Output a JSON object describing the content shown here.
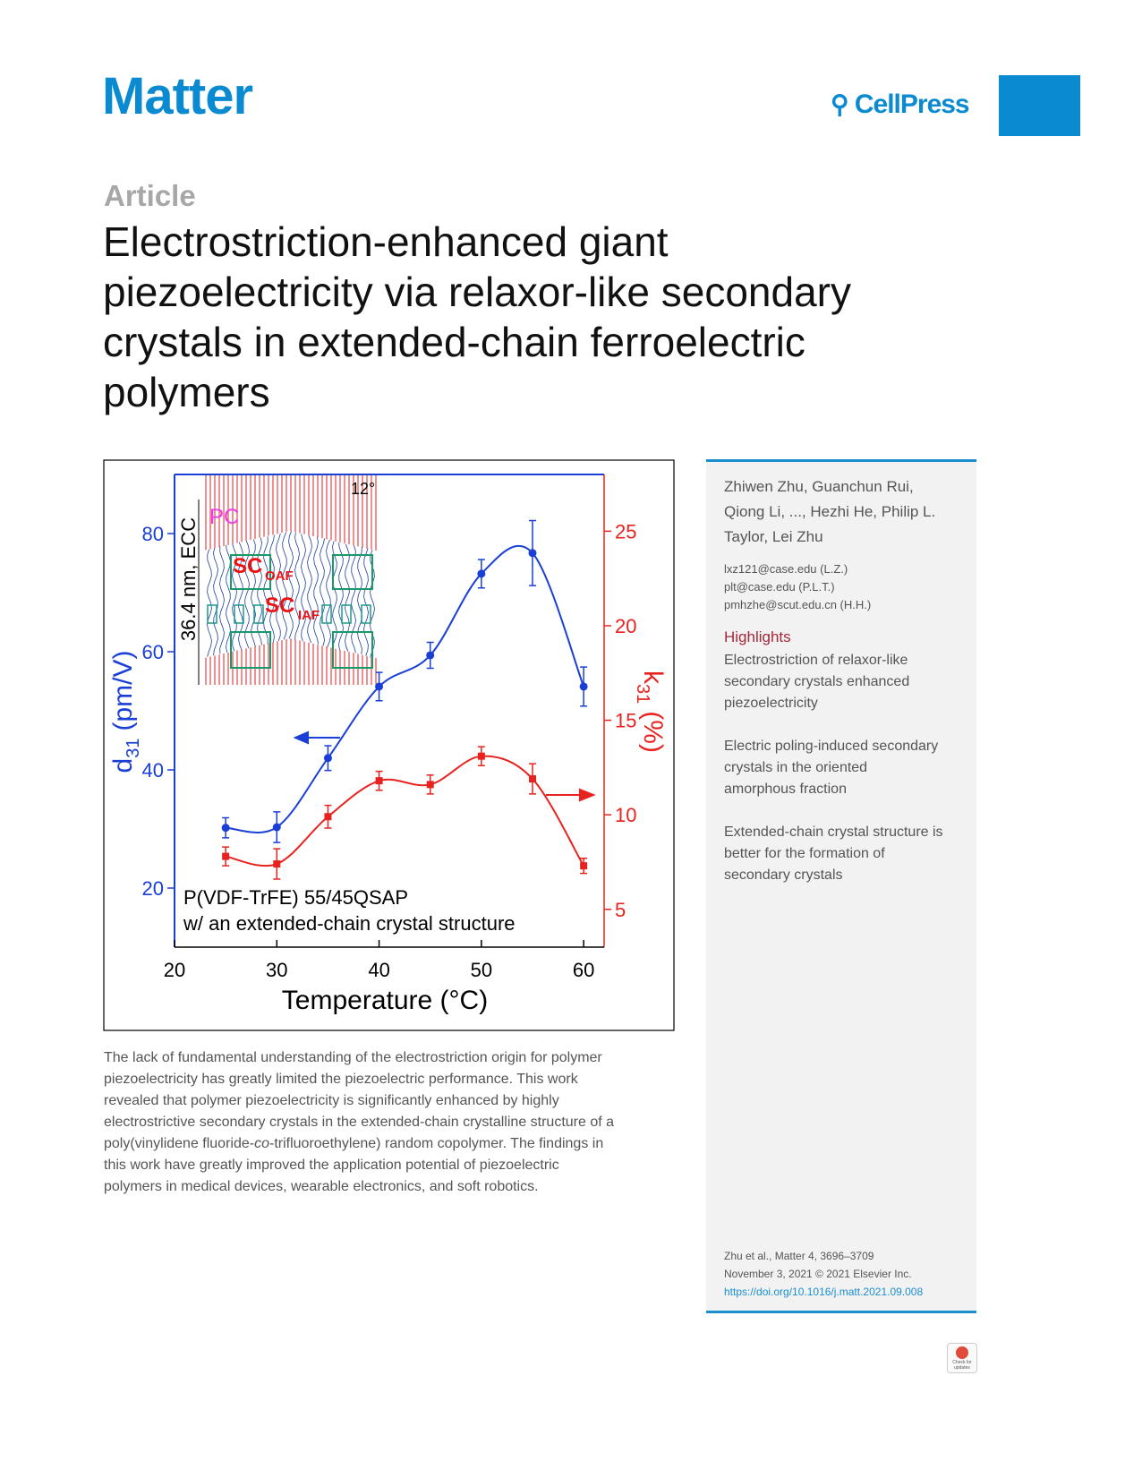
{
  "header": {
    "journal": "Matter",
    "publisher": "CellPress",
    "label": "Article",
    "title_lines": [
      "Electrostriction-enhanced giant",
      "piezoelectricity via relaxor-like secondary",
      "crystals in extended-chain ferroelectric",
      "polymers"
    ]
  },
  "chart_data": {
    "type": "line",
    "x_label": "Temperature (°C)",
    "y_label": {
      "symbol": "d",
      "sub": "31",
      "unit": "(pm/V)"
    },
    "y2_label": {
      "symbol": "k",
      "sub": "31",
      "unit": "(%)"
    },
    "x": [
      25,
      30,
      35,
      40,
      45,
      50,
      55,
      60
    ],
    "xlim": [
      20,
      62
    ],
    "xticks": [
      20,
      30,
      40,
      50,
      60
    ],
    "ylim": [
      10,
      90
    ],
    "yticks": [
      20,
      40,
      60,
      80
    ],
    "y2lim": [
      3,
      28
    ],
    "y2ticks": [
      5,
      10,
      15,
      20,
      25
    ],
    "series": [
      {
        "color": "#1a3fd6",
        "marker": "circle",
        "values": [
          30.2,
          30.3,
          42,
          54.1,
          59.4,
          73.2,
          76.7,
          54.1
        ],
        "errors": [
          1.7,
          2.6,
          2.1,
          2.4,
          2.2,
          2.4,
          5.5,
          3.3
        ]
      },
      {
        "color": "#e8231f",
        "marker": "square",
        "axis": "y2",
        "values": [
          7.8,
          7.4,
          9.9,
          11.8,
          11.6,
          13.1,
          11.9,
          7.3
        ],
        "errors": [
          0.5,
          0.8,
          0.6,
          0.5,
          0.5,
          0.5,
          0.8,
          0.4
        ]
      }
    ],
    "annotations": [
      "P(VDF-TrFE) 55/45QSAP",
      "w/ an extended-chain crystal structure"
    ],
    "inset": {
      "angle": "12°",
      "pc": "PC",
      "sc": "SC",
      "oaf": "OAF",
      "iaf": "IAF",
      "dimension": "36.4 nm, ECC"
    }
  },
  "abstract": {
    "lines": [
      "The lack of fundamental understanding of the electrostriction origin for polymer",
      "piezoelectricity has greatly limited the piezoelectric performance. This work",
      "revealed that polymer piezoelectricity is significantly enhanced by highly",
      "electrostrictive secondary crystals in the extended-chain crystalline structure of a",
      [
        "poly(vinylidene fluoride-",
        "co",
        "-trifluoroethylene) random copolymer. The findings in"
      ],
      "this work have greatly improved the application potential of piezoelectric",
      "polymers in medical devices, wearable electronics, and soft robotics."
    ]
  },
  "sidebar": {
    "authors": [
      "Zhiwen Zhu, Guanchun Rui,",
      "Qiong Li, ..., Hezhi He, Philip L.",
      "Taylor, Lei Zhu"
    ],
    "emails": [
      "lxz121@case.edu (L.Z.)",
      "plt@case.edu (P.L.T.)",
      "pmhzhe@scut.edu.cn (H.H.)"
    ],
    "highlights_heading": "Highlights",
    "highlights": [
      [
        "Electrostriction of relaxor-like",
        "secondary crystals enhanced",
        "piezoelectricity"
      ],
      [
        "Electric poling-induced secondary",
        "crystals in the oriented",
        "amorphous fraction"
      ],
      [
        "Extended-chain crystal structure is",
        "better for the formation of",
        "secondary crystals"
      ]
    ],
    "citation": [
      "Zhu et al., Matter 4, 3696–3709",
      "November 3, 2021 © 2021 Elsevier Inc."
    ],
    "doi": "https://doi.org/10.1016/j.matt.2021.09.008"
  },
  "badge": "Check for updates"
}
